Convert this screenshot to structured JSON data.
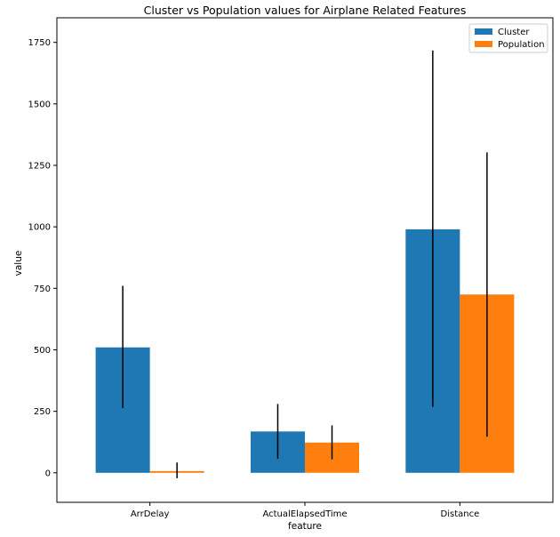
{
  "chart_data": {
    "type": "bar",
    "title": "Cluster vs Population values for Airplane Related Features",
    "xlabel": "feature",
    "ylabel": "value",
    "categories": [
      "ArrDelay",
      "ActualElapsedTime",
      "Distance"
    ],
    "ylim": [
      -120,
      1850
    ],
    "yticks": [
      0,
      250,
      500,
      750,
      1000,
      1250,
      1500,
      1750
    ],
    "grid": false,
    "legend_position": "top-right",
    "series": [
      {
        "name": "Cluster",
        "color": "#1f77b4",
        "values": [
          510,
          168,
          990
        ],
        "error_low": [
          263,
          57,
          268
        ],
        "error_high": [
          760,
          280,
          1717
        ]
      },
      {
        "name": "Population",
        "color": "#ff7f0e",
        "values": [
          7,
          123,
          725
        ],
        "error_low": [
          -22,
          55,
          147
        ],
        "error_high": [
          42,
          193,
          1303
        ]
      }
    ]
  }
}
